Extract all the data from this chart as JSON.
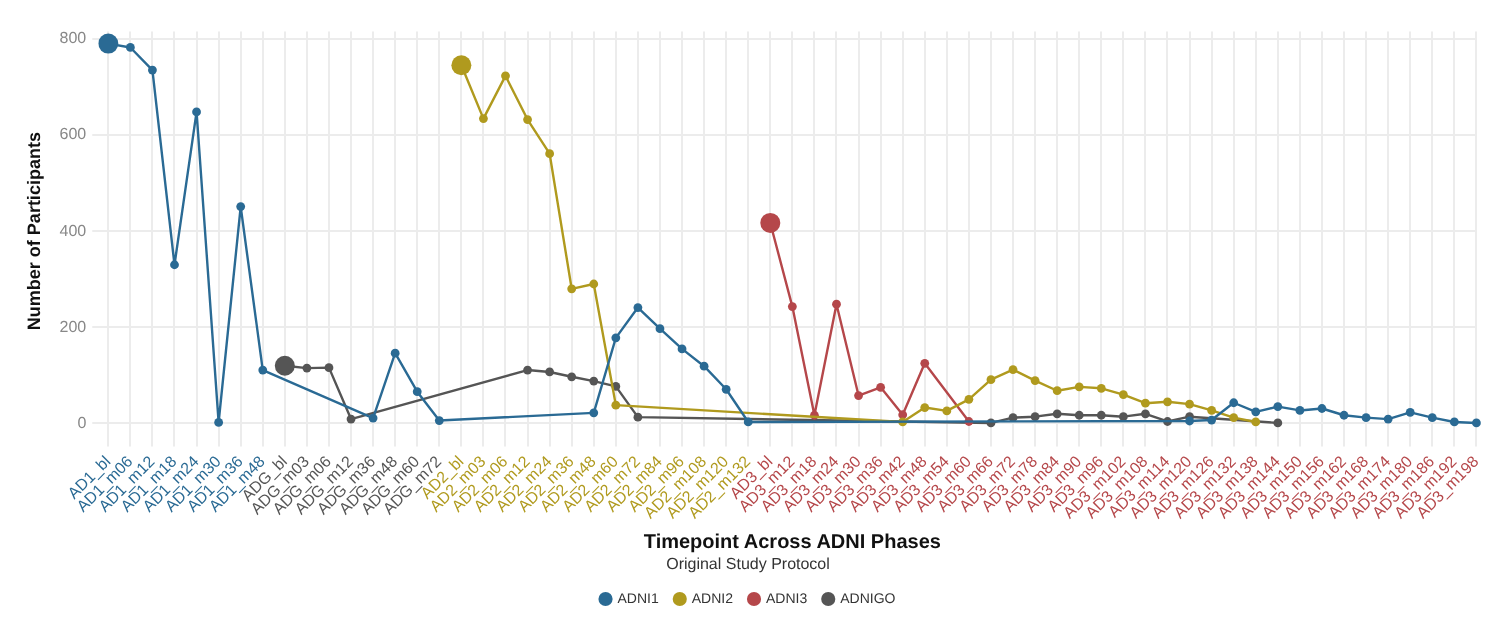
{
  "chart_data": {
    "type": "line",
    "xlabel": "Timepoint Across ADNI Phases",
    "ylabel": "Number of Participants",
    "legend_title": "Original Study Protocol",
    "categories": [
      "AD1_bl",
      "AD1_m06",
      "AD1_m12",
      "AD1_m18",
      "AD1_m24",
      "AD1_m30",
      "AD1_m36",
      "AD1_m48",
      "ADG_bl",
      "ADG_m03",
      "ADG_m06",
      "ADG_m12",
      "ADG_m36",
      "ADG_m48",
      "ADG_m60",
      "ADG_m72",
      "AD2_bl",
      "AD2_m03",
      "AD2_m06",
      "AD2_m12",
      "AD2_m24",
      "AD2_m36",
      "AD2_m48",
      "AD2_m60",
      "AD2_m72",
      "AD2_m84",
      "AD2_m96",
      "AD2_m108",
      "AD2_m120",
      "AD2_m132",
      "AD3_bl",
      "AD3_m12",
      "AD3_m18",
      "AD3_m24",
      "AD3_m30",
      "AD3_m36",
      "AD3_m42",
      "AD3_m48",
      "AD3_m54",
      "AD3_m60",
      "AD3_m66",
      "AD3_m72",
      "AD3_m78",
      "AD3_m84",
      "AD3_m90",
      "AD3_m96",
      "AD3_m102",
      "AD3_m108",
      "AD3_m114",
      "AD3_m120",
      "AD3_m126",
      "AD3_m132",
      "AD3_m138",
      "AD3_m144",
      "AD3_m150",
      "AD3_m156",
      "AD3_m162",
      "AD3_m168",
      "AD3_m174",
      "AD3_m180",
      "AD3_m186",
      "AD3_m192",
      "AD3_m198"
    ],
    "series": [
      {
        "name": "ADNI1",
        "color": "#2a6a94",
        "values": [
          790,
          782,
          735,
          330,
          648,
          2,
          451,
          111,
          null,
          null,
          null,
          null,
          11,
          146,
          66,
          6,
          null,
          null,
          null,
          null,
          null,
          null,
          22,
          178,
          241,
          197,
          155,
          119,
          71,
          3,
          null,
          null,
          null,
          null,
          null,
          null,
          null,
          null,
          null,
          null,
          null,
          null,
          null,
          null,
          null,
          null,
          null,
          null,
          null,
          5,
          7,
          43,
          24,
          35,
          27,
          31,
          17,
          12,
          9,
          23,
          12,
          3,
          1
        ]
      },
      {
        "name": "ADNI2",
        "color": "#b09a1e",
        "values": [
          null,
          null,
          null,
          null,
          null,
          null,
          null,
          null,
          null,
          null,
          null,
          null,
          null,
          null,
          null,
          null,
          745,
          634,
          723,
          632,
          561,
          280,
          290,
          38,
          null,
          null,
          null,
          null,
          null,
          null,
          null,
          null,
          null,
          null,
          null,
          null,
          3,
          33,
          26,
          50,
          91,
          112,
          89,
          68,
          76,
          73,
          60,
          42,
          45,
          40,
          27,
          12,
          3,
          null,
          null,
          null,
          null,
          null,
          null,
          null,
          null,
          null,
          null
        ]
      },
      {
        "name": "ADNI3",
        "color": "#b5474a",
        "values": [
          null,
          null,
          null,
          null,
          null,
          null,
          null,
          null,
          null,
          null,
          null,
          null,
          null,
          null,
          null,
          null,
          null,
          null,
          null,
          null,
          null,
          null,
          null,
          null,
          null,
          null,
          null,
          null,
          null,
          null,
          417,
          243,
          17,
          248,
          58,
          75,
          18,
          125,
          null,
          4,
          null,
          null,
          null,
          null,
          null,
          null,
          null,
          null,
          null,
          null,
          null,
          null,
          null,
          null,
          null,
          null,
          null,
          null,
          null,
          null,
          null,
          null,
          null
        ]
      },
      {
        "name": "ADNIGO",
        "color": "#555555",
        "values": [
          null,
          null,
          null,
          null,
          null,
          null,
          null,
          null,
          120,
          115,
          116,
          9,
          null,
          null,
          null,
          null,
          null,
          null,
          null,
          111,
          107,
          97,
          88,
          77,
          13,
          null,
          null,
          null,
          null,
          null,
          null,
          null,
          null,
          null,
          null,
          null,
          null,
          null,
          null,
          null,
          1,
          12,
          14,
          20,
          17,
          17,
          14,
          20,
          4,
          14,
          null,
          null,
          null,
          1,
          null,
          null,
          null,
          null,
          null,
          null,
          null,
          null,
          null
        ]
      }
    ],
    "ylim": [
      -15,
      815
    ],
    "yticks": [
      0,
      200,
      400,
      600,
      800
    ],
    "grid": true,
    "legend": "bottom",
    "marker": "circle",
    "line_style": "solid"
  }
}
